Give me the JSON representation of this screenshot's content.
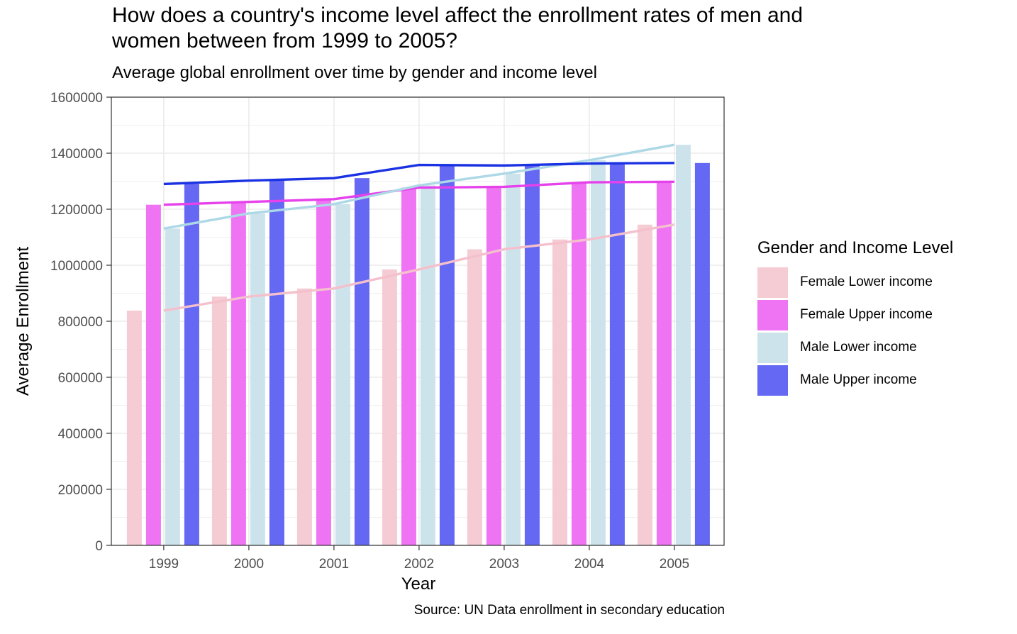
{
  "chart_data": {
    "type": "bar",
    "title": "How does a country's income level affect the enrollment rates of men and women between from 1999 to 2005?",
    "subtitle": "Average global enrollment over time by gender and income level",
    "caption": "Source: UN Data enrollment in secondary education",
    "xlabel": "Year",
    "ylabel": "Average Enrollment",
    "ylim": [
      0,
      1600000
    ],
    "yticks": [
      0,
      200000,
      400000,
      600000,
      800000,
      1000000,
      1200000,
      1400000,
      1600000
    ],
    "ytick_labels": [
      "0",
      "200000",
      "400000",
      "600000",
      "800000",
      "1000000",
      "1200000",
      "1400000",
      "1600000"
    ],
    "categories": [
      "1999",
      "2000",
      "2001",
      "2002",
      "2003",
      "2004",
      "2005"
    ],
    "grid": true,
    "legend": {
      "title": "Gender and Income Level",
      "placement": "right"
    },
    "overlay": "line per series connecting yearly values",
    "series": [
      {
        "name": "Female Lower income",
        "bar_color": "#f5ccd4",
        "line_color": "#f4c0cc",
        "values": [
          838000,
          888000,
          917000,
          985000,
          1057000,
          1092000,
          1145000
        ]
      },
      {
        "name": "Female Upper income",
        "bar_color": "#ef74f3",
        "line_color": "#e642ec",
        "values": [
          1216000,
          1226000,
          1236000,
          1277000,
          1280000,
          1296000,
          1298000
        ]
      },
      {
        "name": "Male Lower income",
        "bar_color": "#cde3ec",
        "line_color": "#add8e6",
        "values": [
          1131000,
          1185000,
          1218000,
          1285000,
          1327000,
          1375000,
          1430000
        ]
      },
      {
        "name": "Male Upper income",
        "bar_color": "#6468f2",
        "line_color": "#1b32e3",
        "values": [
          1290000,
          1302000,
          1311000,
          1358000,
          1356000,
          1363000,
          1365000
        ]
      }
    ]
  }
}
